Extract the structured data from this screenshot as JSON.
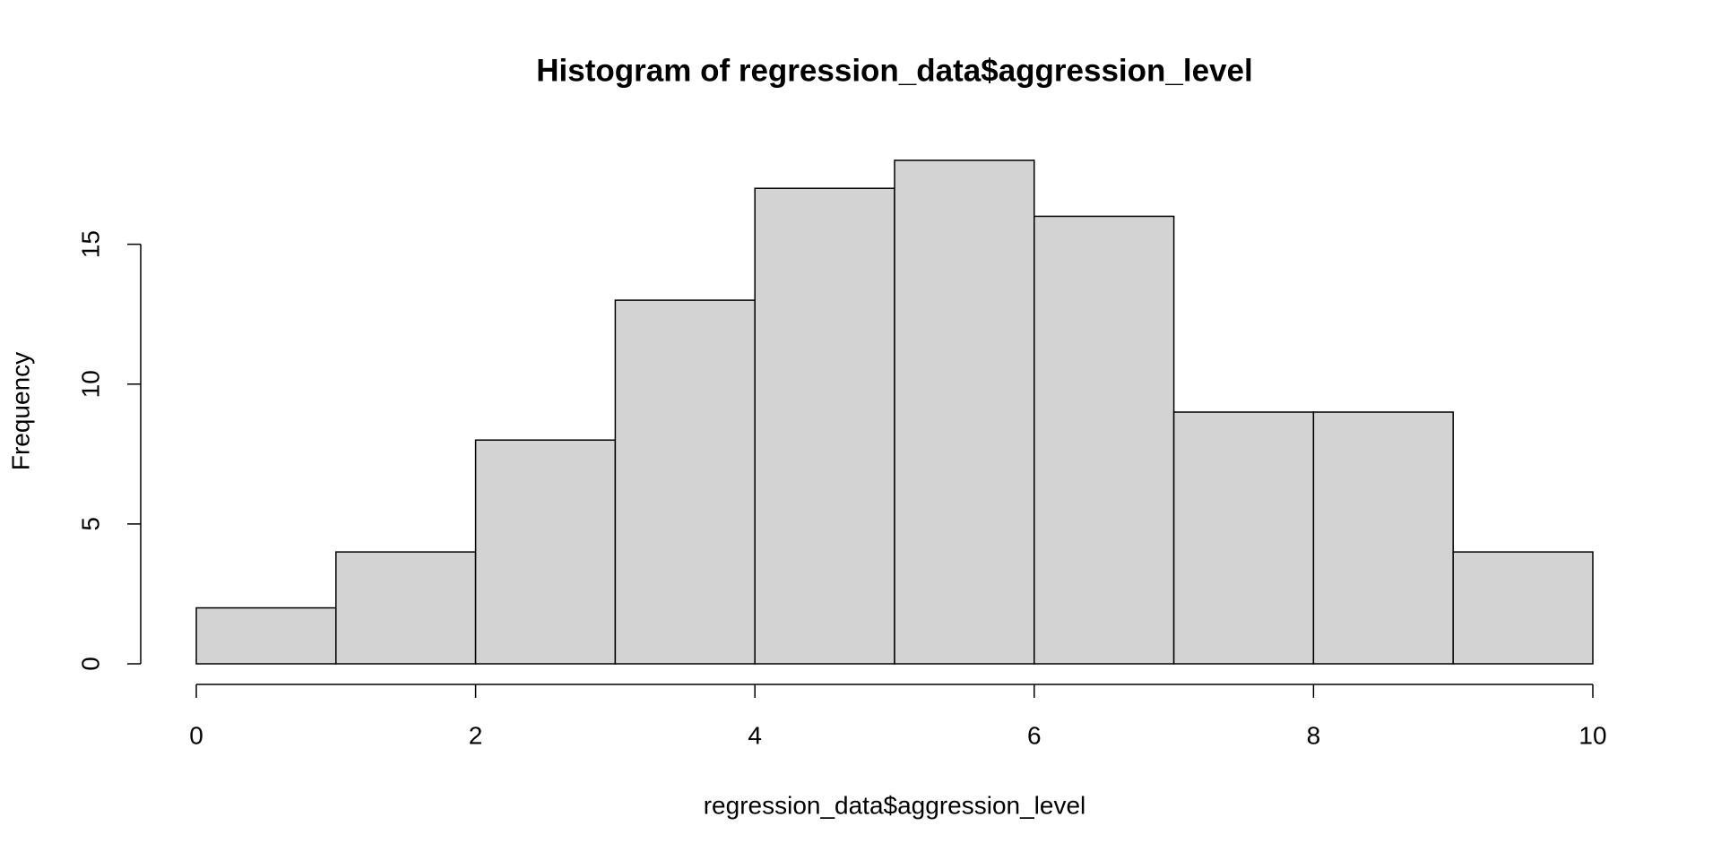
{
  "chart_data": {
    "type": "histogram",
    "title": "Histogram of regression_data$aggression_level",
    "x_label": "regression_data$aggression_level",
    "y_label": "Frequency",
    "bins": [
      0,
      1,
      2,
      3,
      4,
      5,
      6,
      7,
      8,
      9,
      10
    ],
    "values": [
      2,
      4,
      8,
      13,
      17,
      18,
      16,
      9,
      9,
      4
    ],
    "color": "#d3d3d3",
    "xlim": [
      0,
      10
    ],
    "xticks": [
      0,
      2,
      4,
      6,
      8,
      10
    ],
    "ylim": [
      0,
      18
    ],
    "yticks": [
      0,
      5,
      10,
      15
    ]
  }
}
